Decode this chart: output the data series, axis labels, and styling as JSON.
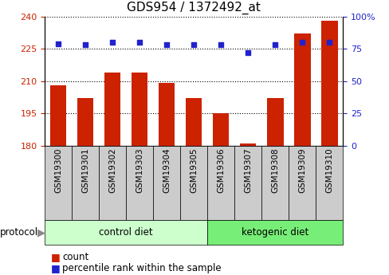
{
  "title": "GDS954 / 1372492_at",
  "samples": [
    "GSM19300",
    "GSM19301",
    "GSM19302",
    "GSM19303",
    "GSM19304",
    "GSM19305",
    "GSM19306",
    "GSM19307",
    "GSM19308",
    "GSM19309",
    "GSM19310"
  ],
  "red_values": [
    208,
    202,
    214,
    214,
    209,
    202,
    195,
    181,
    202,
    232,
    238
  ],
  "blue_values": [
    79,
    78,
    80,
    80,
    78,
    78,
    78,
    72,
    78,
    80,
    80
  ],
  "left_ylim": [
    180,
    240
  ],
  "right_ylim": [
    0,
    100
  ],
  "left_yticks": [
    180,
    195,
    210,
    225,
    240
  ],
  "right_yticks": [
    0,
    25,
    50,
    75,
    100
  ],
  "right_yticklabels": [
    "0",
    "25",
    "50",
    "75",
    "100%"
  ],
  "control_diet_count": 6,
  "bar_color": "#cc2200",
  "dot_color": "#2222cc",
  "control_label": "control diet",
  "ketogenic_label": "ketogenic diet",
  "protocol_label": "protocol",
  "legend_count": "count",
  "legend_percentile": "percentile rank within the sample",
  "control_bg": "#ccffcc",
  "ketogenic_bg": "#77ee77",
  "tick_bg": "#cccccc",
  "title_fontsize": 11,
  "label_fontsize": 8.5,
  "tick_fontsize": 8,
  "sample_fontsize": 7.5
}
